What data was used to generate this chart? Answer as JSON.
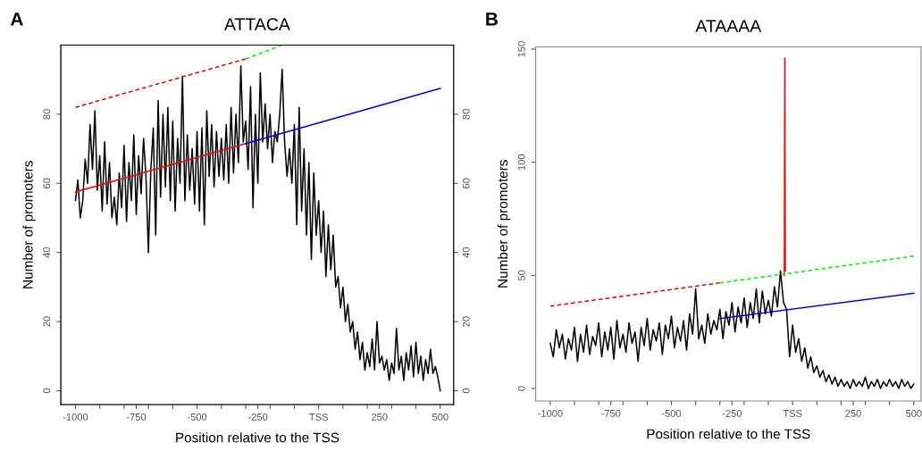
{
  "chart_data": [
    {
      "type": "line",
      "title": "ATTACA",
      "annotations": [
        "A"
      ],
      "xlabel": "Position relative to the TSS",
      "ylabel": "Number of promoters",
      "xlim": [
        -1060,
        555
      ],
      "ylim": [
        -4,
        100
      ],
      "y2lim": [
        -4,
        100
      ],
      "xticks": [
        -1000,
        {
          "value": -900,
          "label": null
        },
        {
          "value": -800,
          "label": null
        },
        -750,
        {
          "value": -700,
          "label": null
        },
        {
          "value": -600,
          "label": null
        },
        -500,
        {
          "value": -400,
          "label": null
        },
        {
          "value": -300,
          "label": null
        },
        -250,
        {
          "value": -200,
          "label": null
        },
        {
          "value": -100,
          "label": null
        },
        {
          "value": 0,
          "label": "TSS"
        },
        {
          "value": 100,
          "label": null
        },
        {
          "value": 200,
          "label": null
        },
        250,
        {
          "value": 300,
          "label": null
        },
        {
          "value": 400,
          "label": null
        },
        500
      ],
      "yticks": [
        0,
        20,
        40,
        60,
        80
      ],
      "y2ticks": [
        0,
        20,
        40,
        60,
        80
      ],
      "series": [
        {
          "color": "#000000",
          "x": [
            -1000,
            -990,
            -980,
            -970,
            -960,
            -950,
            -940,
            -930,
            -920,
            -910,
            -900,
            -890,
            -880,
            -870,
            -860,
            -850,
            -840,
            -830,
            -820,
            -810,
            -800,
            -790,
            -780,
            -770,
            -760,
            -750,
            -740,
            -730,
            -720,
            -710,
            -700,
            -690,
            -680,
            -670,
            -660,
            -650,
            -640,
            -630,
            -620,
            -610,
            -600,
            -590,
            -580,
            -570,
            -560,
            -550,
            -540,
            -530,
            -520,
            -510,
            -500,
            -490,
            -480,
            -470,
            -460,
            -450,
            -440,
            -430,
            -420,
            -410,
            -400,
            -390,
            -380,
            -370,
            -360,
            -350,
            -340,
            -330,
            -320,
            -310,
            -300,
            -290,
            -280,
            -270,
            -260,
            -250,
            -240,
            -230,
            -220,
            -210,
            -200,
            -190,
            -180,
            -170,
            -160,
            -150,
            -140,
            -130,
            -120,
            -110,
            -100,
            -90,
            -80,
            -70,
            -60,
            -50,
            -40,
            -30,
            -20,
            -10,
            0,
            10,
            20,
            30,
            40,
            50,
            60,
            70,
            80,
            90,
            100,
            110,
            120,
            130,
            140,
            150,
            160,
            170,
            180,
            190,
            200,
            210,
            220,
            230,
            240,
            250,
            260,
            270,
            280,
            290,
            300,
            310,
            320,
            330,
            340,
            350,
            360,
            370,
            380,
            390,
            400,
            410,
            420,
            430,
            440,
            450,
            460,
            470,
            480,
            490,
            500
          ],
          "values": [
            55,
            61,
            50,
            55,
            67,
            60,
            77,
            64,
            81,
            58,
            68,
            52,
            72,
            54,
            66,
            50,
            56,
            48,
            63,
            53,
            71,
            49,
            66,
            55,
            74,
            51,
            68,
            57,
            73,
            62,
            40,
            64,
            76,
            45,
            84,
            56,
            80,
            59,
            82,
            55,
            78,
            52,
            73,
            60,
            91,
            55,
            74,
            58,
            70,
            54,
            75,
            52,
            76,
            48,
            81,
            62,
            77,
            59,
            75,
            62,
            73,
            61,
            77,
            60,
            82,
            63,
            80,
            66,
            94,
            72,
            78,
            64,
            88,
            53,
            80,
            60,
            92,
            72,
            83,
            70,
            80,
            66,
            75,
            72,
            80,
            93,
            72,
            62,
            70,
            60,
            77,
            48,
            82,
            52,
            70,
            45,
            66,
            38,
            63,
            45,
            55,
            40,
            52,
            33,
            48,
            35,
            45,
            30,
            33,
            24,
            30,
            20,
            25,
            17,
            20,
            12,
            17,
            9,
            14,
            6,
            11,
            7,
            15,
            6,
            20,
            8,
            10,
            6,
            9,
            3,
            8,
            5,
            18,
            6,
            10,
            3,
            11,
            6,
            13,
            4,
            14,
            5,
            10,
            3,
            9,
            5,
            12,
            5,
            7,
            4,
            0
          ]
        },
        {
          "color": "#ff0000",
          "x": [
            -1000,
            -300
          ],
          "values": [
            57.5,
            71.5
          ]
        },
        {
          "color": "#0000ff",
          "x": [
            -300,
            500
          ],
          "values": [
            71.5,
            87.5
          ]
        },
        {
          "color": "#ff0000",
          "line_style": "dashed",
          "x": [
            -1000,
            -300
          ],
          "values": [
            82,
            96
          ]
        },
        {
          "color": "#00ff00",
          "line_style": "dashed",
          "x": [
            -300,
            -150
          ],
          "values": [
            96,
            100
          ]
        }
      ]
    },
    {
      "type": "line",
      "title": "ATAAAA",
      "annotations": [
        "B"
      ],
      "xlabel": "Position relative to the TSS",
      "ylabel": "Number of promoters",
      "xlim": [
        -1060,
        530
      ],
      "ylim": [
        -5.5,
        151
      ],
      "xticks": [
        -1000,
        {
          "value": -900,
          "label": null
        },
        {
          "value": -800,
          "label": null
        },
        -750,
        {
          "value": -700,
          "label": null
        },
        {
          "value": -600,
          "label": null
        },
        -500,
        {
          "value": -400,
          "label": null
        },
        {
          "value": -300,
          "label": null
        },
        -250,
        {
          "value": -200,
          "label": null
        },
        {
          "value": -100,
          "label": null
        },
        {
          "value": 0,
          "label": "TSS"
        },
        {
          "value": 100,
          "label": null
        },
        {
          "value": 200,
          "label": null
        },
        250,
        {
          "value": 300,
          "label": null
        },
        {
          "value": 400,
          "label": null
        },
        500
      ],
      "yticks": [
        0,
        50,
        100,
        150
      ],
      "series": [
        {
          "color": "#000000",
          "x": [
            -1000,
            -987.5,
            -975,
            -962.5,
            -950,
            -937.5,
            -925,
            -912.5,
            -900,
            -887.5,
            -875,
            -862.5,
            -850,
            -837.5,
            -825,
            -812.5,
            -800,
            -787.5,
            -775,
            -762.5,
            -750,
            -737.5,
            -725,
            -712.5,
            -700,
            -687.5,
            -675,
            -662.5,
            -650,
            -637.5,
            -625,
            -612.5,
            -600,
            -587.5,
            -575,
            -562.5,
            -550,
            -537.5,
            -525,
            -512.5,
            -500,
            -487.5,
            -475,
            -462.5,
            -450,
            -437.5,
            -425,
            -412.5,
            -400,
            -387.5,
            -375,
            -362.5,
            -350,
            -337.5,
            -325,
            -312.5,
            -300,
            -287.5,
            -275,
            -262.5,
            -250,
            -237.5,
            -225,
            -212.5,
            -200,
            -187.5,
            -175,
            -162.5,
            -150,
            -137.5,
            -125,
            -112.5,
            -100,
            -87.5,
            -75,
            -62.5,
            -50,
            -37.5,
            -25,
            -12.5,
            0,
            12.5,
            25,
            37.5,
            50,
            62.5,
            75,
            87.5,
            100,
            112.5,
            125,
            137.5,
            150,
            162.5,
            175,
            187.5,
            200,
            212.5,
            225,
            237.5,
            250,
            262.5,
            275,
            287.5,
            300,
            312.5,
            325,
            337.5,
            350,
            362.5,
            375,
            387.5,
            400,
            412.5,
            425,
            437.5,
            450,
            462.5,
            475,
            487.5,
            500
          ],
          "values": [
            20,
            14,
            26,
            18,
            24,
            13,
            22,
            17,
            27,
            12,
            24,
            16,
            28,
            15,
            23,
            19,
            29,
            14,
            25,
            17,
            27,
            13,
            30,
            18,
            24,
            16,
            29,
            20,
            25,
            12,
            27,
            19,
            31,
            17,
            26,
            21,
            29,
            15,
            28,
            22,
            32,
            18,
            27,
            21,
            30,
            17,
            33,
            24,
            44,
            22,
            28,
            20,
            33,
            24,
            30,
            26,
            35,
            22,
            34,
            28,
            38,
            25,
            36,
            29,
            40,
            27,
            38,
            31,
            44,
            29,
            43,
            33,
            39,
            32,
            45,
            36,
            52,
            38,
            35,
            14,
            28,
            16,
            22,
            12,
            18,
            9,
            14,
            7,
            10,
            5,
            8,
            3,
            6,
            2,
            5,
            1,
            4,
            1,
            3,
            0,
            4,
            1,
            3,
            1,
            5,
            0,
            3,
            1,
            4,
            0,
            3,
            1,
            4,
            1,
            3,
            0,
            4,
            1,
            3,
            0,
            2
          ]
        },
        {
          "color": "#ff0000",
          "x": [
            -34,
            -32,
            -30
          ],
          "values": [
            50,
            146,
            52
          ]
        },
        {
          "color": "#ff0000",
          "line_style": "dashed",
          "x": [
            -1000,
            -300
          ],
          "values": [
            36.4,
            46.7
          ]
        },
        {
          "color": "#00ff00",
          "line_style": "dashed",
          "x": [
            -300,
            500
          ],
          "values": [
            46.7,
            58.5
          ]
        },
        {
          "color": "#0000ff",
          "x": [
            -300,
            500
          ],
          "values": [
            30.9,
            42.1
          ]
        }
      ]
    }
  ]
}
